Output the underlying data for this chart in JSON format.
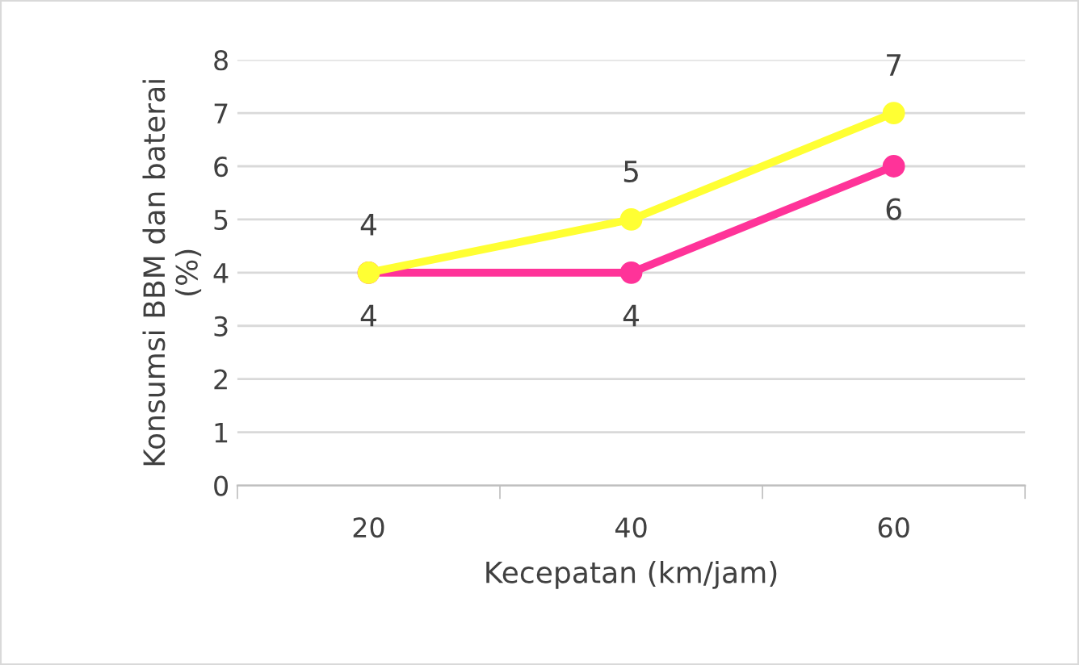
{
  "chart_data": {
    "type": "line",
    "xlabel": "Kecepatan (km/jam)",
    "ylabel": "Konsumsi BBM dan baterai\n(%)",
    "categories": [
      "20",
      "40",
      "60"
    ],
    "series": [
      {
        "color": "#ffff33",
        "values": [
          4,
          5,
          7
        ]
      },
      {
        "color": "#ff3399",
        "values": [
          4,
          4,
          6
        ]
      }
    ],
    "ylim": [
      0,
      8
    ],
    "yticks": [
      0,
      1,
      2,
      3,
      4,
      5,
      6,
      7,
      8
    ],
    "grid": "y",
    "legend": false,
    "marker": "circle",
    "line_style": "solid",
    "data_labels": true
  }
}
